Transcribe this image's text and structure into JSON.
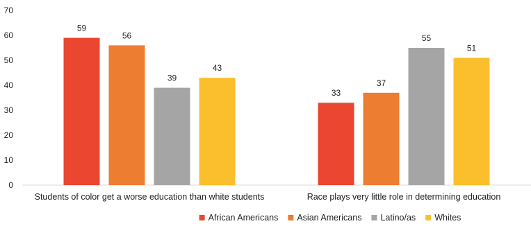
{
  "chart_data": {
    "type": "bar",
    "categories": [
      "Students of color get a worse education than white students",
      "Race plays very little role in determining education"
    ],
    "series": [
      {
        "name": "African Americans",
        "color": "#ea4630",
        "values": [
          59,
          33
        ]
      },
      {
        "name": "Asian Americans",
        "color": "#ed7d31",
        "values": [
          56,
          37
        ]
      },
      {
        "name": "Latino/as",
        "color": "#a5a5a5",
        "values": [
          39,
          55
        ]
      },
      {
        "name": "Whites",
        "color": "#fbbf2e",
        "values": [
          43,
          51
        ]
      }
    ],
    "yticks": [
      0,
      10,
      20,
      30,
      40,
      50,
      60,
      70
    ],
    "ylim": [
      0,
      70
    ],
    "grid": false,
    "legend_position": "bottom"
  }
}
